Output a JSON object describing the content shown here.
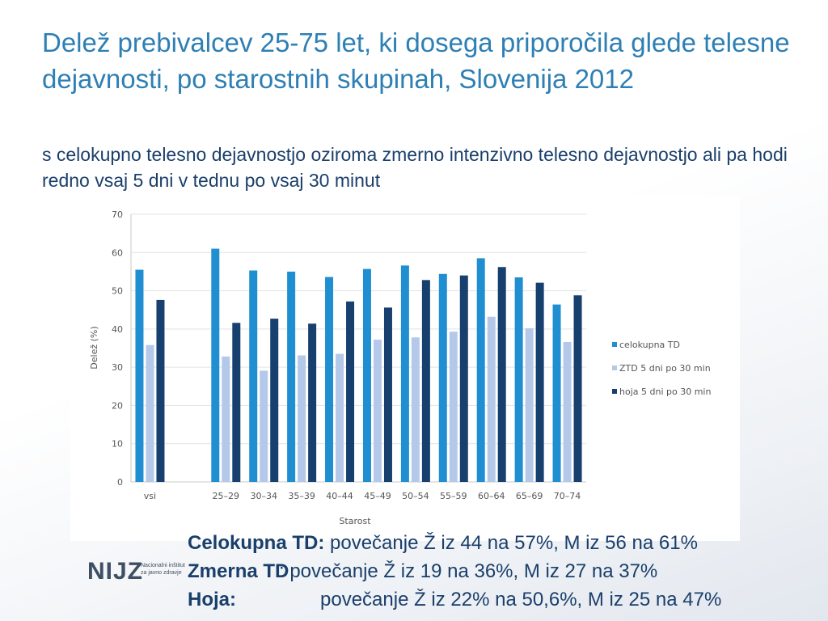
{
  "header": {
    "title": "Delež prebivalcev 25-75 let, ki dosega priporočila glede telesne dejavnosti, po starostnih skupinah, Slovenija 2012",
    "subtitle": "s celokupno telesno dejavnostjo oziroma zmerno intenzivno telesno dejavnostjo ali pa hodi redno vsaj 5 dni v tednu po vsaj 30 minut"
  },
  "chart_data": {
    "type": "bar",
    "categories": [
      "vsi",
      "",
      "25–29",
      "30–34",
      "35–39",
      "40–44",
      "45–49",
      "50–54",
      "55–59",
      "60–64",
      "65–69",
      "70–74"
    ],
    "series": [
      {
        "name": "celokupna TD",
        "color": "#1f8fd1",
        "values": [
          55.5,
          null,
          61,
          55.3,
          55,
          53.6,
          55.7,
          56.6,
          54.4,
          58.5,
          53.5,
          46.4
        ]
      },
      {
        "name": "ZTD 5 dni po 30 min",
        "color": "#b4c9ea",
        "values": [
          35.8,
          null,
          32.8,
          29.1,
          33.1,
          33.5,
          37.2,
          37.8,
          39.3,
          43.2,
          40.2,
          36.6
        ]
      },
      {
        "name": "hoja 5 dni po 30 min",
        "color": "#17406f",
        "values": [
          47.6,
          null,
          41.6,
          42.7,
          41.4,
          47.2,
          45.6,
          52.8,
          54,
          56.2,
          52.1,
          48.8
        ]
      }
    ],
    "title": "",
    "xlabel": "Starost",
    "ylabel": "Delež (%)",
    "ylim": [
      0,
      70
    ],
    "yticks": [
      0,
      10,
      20,
      30,
      40,
      50,
      60,
      70
    ],
    "grid": true,
    "legend": "right"
  },
  "notes": [
    {
      "label": "Celokupna TD:",
      "text": " povečanje Ž iz 44 na 57%, M iz 56 na 61%"
    },
    {
      "label": "Zmerna TD",
      "text": ":    povečanje Ž iz 19 na 36%, M iz 27 na 37%"
    },
    {
      "label": "Hoja:",
      "text": "povečanje Ž iz 22% na 50,6%, M iz 25 na 47%"
    }
  ],
  "logo": {
    "mark": "NIJZ",
    "line1": "Nacionalni inštitut",
    "line2": "za javno zdravje"
  }
}
